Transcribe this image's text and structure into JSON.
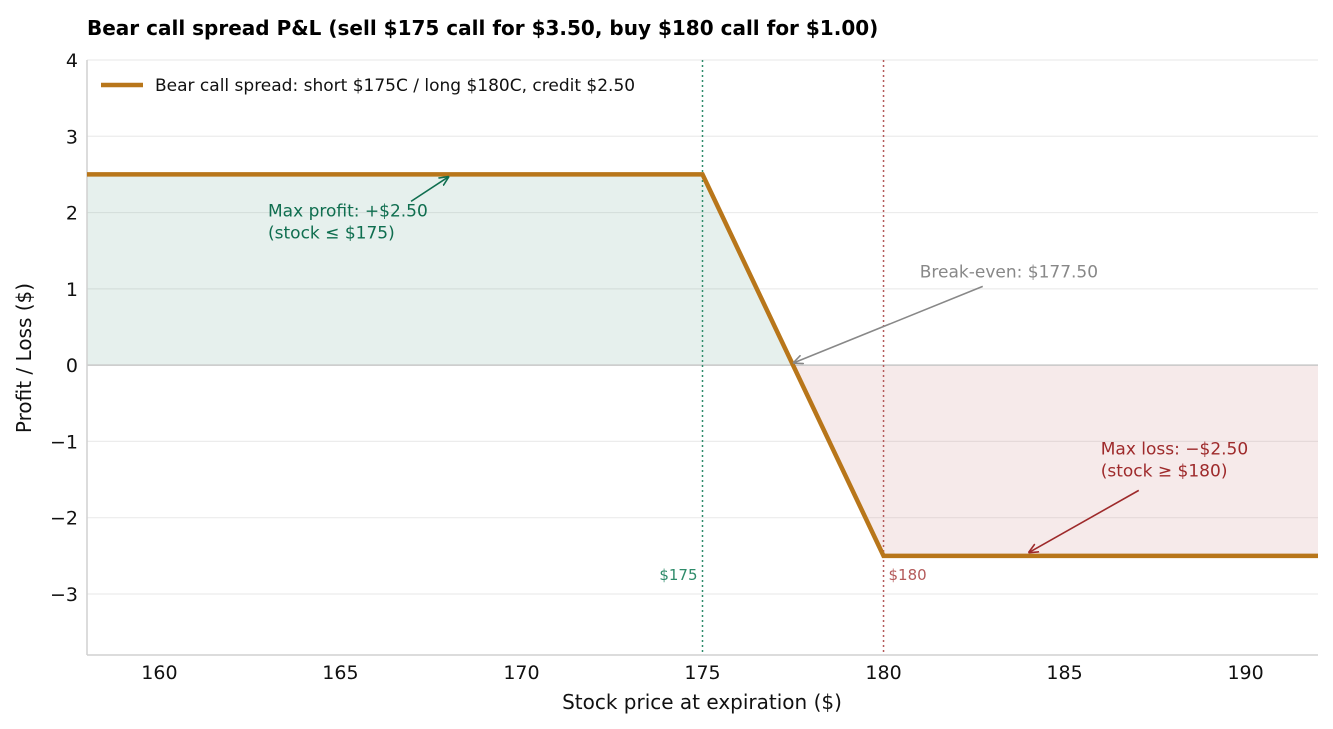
{
  "chart_data": {
    "type": "line",
    "title": "Bear call spread P&L  (sell $175 call for $3.50, buy $180 call for $1.00)",
    "xlabel": "Stock price at expiration ($)",
    "ylabel": "Profit / Loss ($)",
    "xlim": [
      158,
      192
    ],
    "ylim": [
      -3.8,
      4
    ],
    "xticks": [
      160,
      165,
      170,
      175,
      180,
      185,
      190
    ],
    "yticks": [
      -3,
      -2,
      -1,
      0,
      1,
      2,
      3,
      4
    ],
    "xtick_labels": [
      "160",
      "165",
      "170",
      "175",
      "180",
      "185",
      "190"
    ],
    "ytick_labels": [
      "−3",
      "−2",
      "−1",
      "0",
      "1",
      "2",
      "3",
      "4"
    ],
    "grid": "horizontal",
    "legend_position": "top-left",
    "series": [
      {
        "name": "Bear call spread: short $175C / long $180C, credit $2.50",
        "color": "#b8761a",
        "x": [
          158,
          175,
          180,
          192
        ],
        "y": [
          2.5,
          2.5,
          -2.5,
          -2.5
        ]
      }
    ],
    "reference_lines": [
      {
        "x": 175,
        "label": "$175",
        "color": "#2e8b6a"
      },
      {
        "x": 180,
        "label": "$180",
        "color": "#b45a5a"
      }
    ],
    "shaded_regions": [
      {
        "name": "profit",
        "color": "#1e7a5a",
        "opacity": 0.11
      },
      {
        "name": "loss",
        "color": "#a83232",
        "opacity": 0.1
      }
    ],
    "annotations": [
      {
        "line1": "Max profit: +$2.50",
        "line2": "(stock ≤ $175)",
        "target": [
          168,
          2.5
        ],
        "text_at": [
          163,
          1.95
        ],
        "color": "#0f6e4f"
      },
      {
        "line1": "Break-even: $177.50",
        "line2": "",
        "target": [
          177.5,
          0
        ],
        "text_at": [
          181,
          1.15
        ],
        "color": "#888888"
      },
      {
        "line1": "Max loss: −$2.50",
        "line2": "(stock ≥ $180)",
        "target": [
          184,
          -2.5
        ],
        "text_at": [
          186,
          -1.17
        ],
        "color": "#9e2a2b"
      }
    ]
  }
}
